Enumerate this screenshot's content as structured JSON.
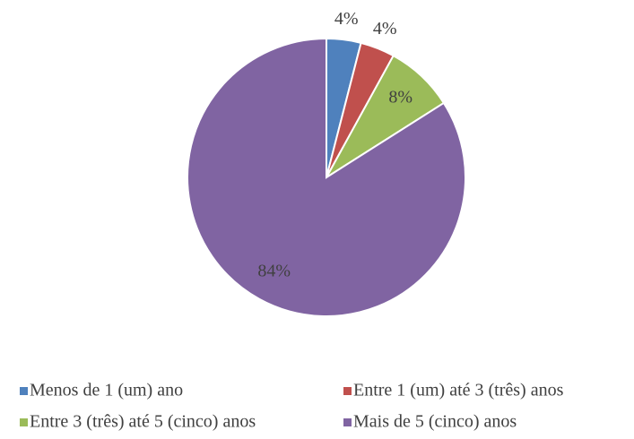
{
  "chart_data": {
    "type": "pie",
    "categories": [
      "Menos de 1 (um) ano",
      "Entre 1 (um) até 3 (três) anos",
      "Entre 3 (três) até 5 (cinco) anos",
      "Mais de 5 (cinco) anos"
    ],
    "values": [
      4,
      4,
      8,
      84
    ],
    "value_labels": [
      "4%",
      "4%",
      "8%",
      "84%"
    ],
    "colors": [
      "#4f81bd",
      "#c0504d",
      "#9bbb59",
      "#8064a2"
    ],
    "legend": "bottom"
  }
}
